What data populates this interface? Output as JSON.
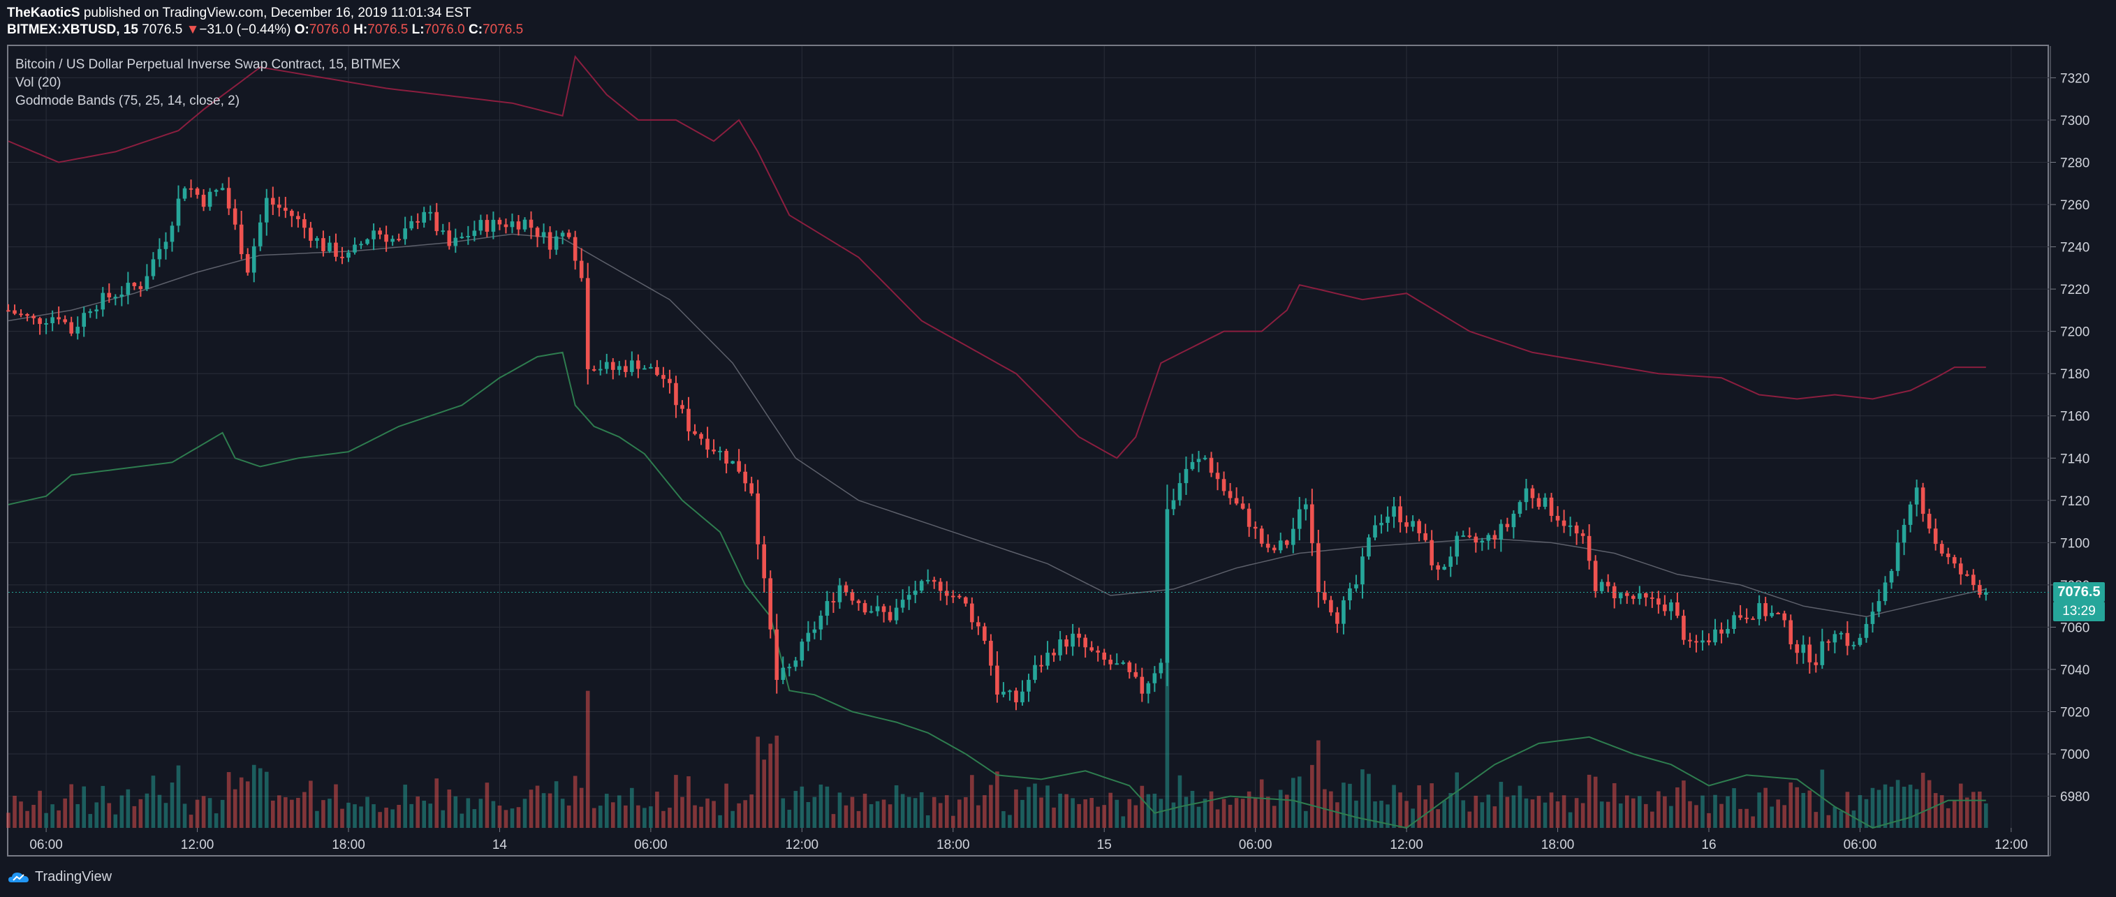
{
  "header": {
    "author": "TheKaoticS",
    "published_text": "published on TradingView.com, December 16, 2019 11:01:34 EST",
    "symbol": "BITMEX:XBTUSD, 15",
    "last": "7076.5",
    "change_arrow": "▼",
    "change": "−31.0 (−0.44%)",
    "o_label": "O:",
    "o_value": "7076.0",
    "h_label": "H:",
    "h_value": "7076.5",
    "l_label": "L:",
    "l_value": "7076.0",
    "c_label": "C:",
    "c_value": "7076.5"
  },
  "legend": {
    "title": "Bitcoin / US Dollar Perpetual Inverse Swap Contract, 15, BITMEX",
    "vol": "Vol (20)",
    "bands": "Godmode Bands (75, 25, 14, close, 2)"
  },
  "price_tag": "7076.5",
  "timer_tag": "13:29",
  "footer": {
    "brand": "TradingView"
  },
  "colors": {
    "up": "#26a69a",
    "down": "#ef5350",
    "upper_band": "#8b1e3f",
    "lower_band": "#2e7d4f",
    "mid_band": "#5d606b",
    "grid": "#2a2e39",
    "background": "#131722"
  },
  "chart_data": {
    "type": "candlestick",
    "ylim": [
      6965,
      7335
    ],
    "y_ticks": [
      7320,
      7300,
      7280,
      7260,
      7240,
      7220,
      7200,
      7180,
      7160,
      7140,
      7120,
      7100,
      7080,
      7060,
      7040,
      7020,
      7000,
      6980
    ],
    "x_range": [
      0,
      324
    ],
    "x_ticks": [
      {
        "x": 6,
        "label": "06:00"
      },
      {
        "x": 30,
        "label": "12:00"
      },
      {
        "x": 54,
        "label": "18:00"
      },
      {
        "x": 78,
        "label": "14"
      },
      {
        "x": 102,
        "label": "06:00"
      },
      {
        "x": 126,
        "label": "12:00"
      },
      {
        "x": 150,
        "label": "18:00"
      },
      {
        "x": 174,
        "label": "15"
      },
      {
        "x": 198,
        "label": "06:00"
      },
      {
        "x": 222,
        "label": "12:00"
      },
      {
        "x": 246,
        "label": "18:00"
      },
      {
        "x": 270,
        "label": "16"
      },
      {
        "x": 294,
        "label": "06:00"
      },
      {
        "x": 318,
        "label": "12:00"
      }
    ],
    "last_price": 7076.5,
    "close_anchors": [
      [
        0,
        7210
      ],
      [
        4,
        7205
      ],
      [
        8,
        7208
      ],
      [
        10,
        7200
      ],
      [
        13,
        7212
      ],
      [
        17,
        7218
      ],
      [
        21,
        7222
      ],
      [
        25,
        7245
      ],
      [
        28,
        7270
      ],
      [
        31,
        7262
      ],
      [
        34,
        7268
      ],
      [
        38,
        7230
      ],
      [
        41,
        7262
      ],
      [
        45,
        7255
      ],
      [
        50,
        7240
      ],
      [
        54,
        7235
      ],
      [
        58,
        7248
      ],
      [
        62,
        7242
      ],
      [
        66,
        7258
      ],
      [
        70,
        7240
      ],
      [
        75,
        7250
      ],
      [
        82,
        7252
      ],
      [
        86,
        7242
      ],
      [
        89,
        7248
      ],
      [
        91,
        7225
      ],
      [
        92,
        7185
      ],
      [
        96,
        7182
      ],
      [
        100,
        7185
      ],
      [
        104,
        7178
      ],
      [
        108,
        7155
      ],
      [
        112,
        7145
      ],
      [
        116,
        7135
      ],
      [
        118,
        7125
      ],
      [
        120,
        7080
      ],
      [
        122,
        7035
      ],
      [
        124,
        7040
      ],
      [
        128,
        7060
      ],
      [
        132,
        7080
      ],
      [
        136,
        7070
      ],
      [
        140,
        7065
      ],
      [
        144,
        7078
      ],
      [
        148,
        7080
      ],
      [
        152,
        7070
      ],
      [
        155,
        7055
      ],
      [
        157,
        7030
      ],
      [
        160,
        7025
      ],
      [
        163,
        7040
      ],
      [
        166,
        7050
      ],
      [
        169,
        7055
      ],
      [
        173,
        7045
      ],
      [
        177,
        7040
      ],
      [
        180,
        7030
      ],
      [
        183,
        7045
      ],
      [
        184,
        7115
      ],
      [
        187,
        7135
      ],
      [
        190,
        7140
      ],
      [
        193,
        7125
      ],
      [
        197,
        7110
      ],
      [
        200,
        7095
      ],
      [
        203,
        7100
      ],
      [
        206,
        7120
      ],
      [
        208,
        7080
      ],
      [
        211,
        7065
      ],
      [
        214,
        7080
      ],
      [
        217,
        7110
      ],
      [
        220,
        7115
      ],
      [
        224,
        7105
      ],
      [
        227,
        7085
      ],
      [
        230,
        7100
      ],
      [
        234,
        7100
      ],
      [
        238,
        7108
      ],
      [
        241,
        7125
      ],
      [
        244,
        7118
      ],
      [
        247,
        7110
      ],
      [
        250,
        7100
      ],
      [
        252,
        7080
      ],
      [
        256,
        7075
      ],
      [
        260,
        7072
      ],
      [
        264,
        7070
      ],
      [
        267,
        7050
      ],
      [
        270,
        7055
      ],
      [
        274,
        7065
      ],
      [
        278,
        7068
      ],
      [
        281,
        7065
      ],
      [
        284,
        7050
      ],
      [
        287,
        7045
      ],
      [
        290,
        7060
      ],
      [
        293,
        7050
      ],
      [
        296,
        7065
      ],
      [
        299,
        7090
      ],
      [
        301,
        7105
      ],
      [
        303,
        7125
      ],
      [
        306,
        7100
      ],
      [
        309,
        7088
      ],
      [
        312,
        7080
      ],
      [
        314,
        7076.5
      ]
    ],
    "upper_band_anchors": [
      [
        0,
        7290
      ],
      [
        8,
        7280
      ],
      [
        17,
        7285
      ],
      [
        27,
        7295
      ],
      [
        31,
        7305
      ],
      [
        40,
        7325
      ],
      [
        60,
        7315
      ],
      [
        80,
        7308
      ],
      [
        88,
        7302
      ],
      [
        90,
        7330
      ],
      [
        95,
        7312
      ],
      [
        100,
        7300
      ],
      [
        106,
        7300
      ],
      [
        112,
        7290
      ],
      [
        116,
        7300
      ],
      [
        119,
        7285
      ],
      [
        124,
        7255
      ],
      [
        135,
        7235
      ],
      [
        145,
        7205
      ],
      [
        160,
        7180
      ],
      [
        170,
        7150
      ],
      [
        176,
        7140
      ],
      [
        179,
        7150
      ],
      [
        183,
        7185
      ],
      [
        193,
        7200
      ],
      [
        199,
        7200
      ],
      [
        203,
        7210
      ],
      [
        205,
        7222
      ],
      [
        215,
        7215
      ],
      [
        222,
        7218
      ],
      [
        232,
        7200
      ],
      [
        242,
        7190
      ],
      [
        252,
        7185
      ],
      [
        262,
        7180
      ],
      [
        272,
        7178
      ],
      [
        278,
        7170
      ],
      [
        284,
        7168
      ],
      [
        290,
        7170
      ],
      [
        296,
        7168
      ],
      [
        302,
        7172
      ],
      [
        306,
        7178
      ],
      [
        309,
        7183
      ],
      [
        313,
        7183
      ]
    ],
    "lower_band_anchors": [
      [
        0,
        7118
      ],
      [
        6,
        7122
      ],
      [
        10,
        7132
      ],
      [
        18,
        7135
      ],
      [
        26,
        7138
      ],
      [
        34,
        7152
      ],
      [
        36,
        7140
      ],
      [
        40,
        7136
      ],
      [
        46,
        7140
      ],
      [
        54,
        7143
      ],
      [
        62,
        7155
      ],
      [
        72,
        7165
      ],
      [
        78,
        7178
      ],
      [
        84,
        7188
      ],
      [
        88,
        7190
      ],
      [
        90,
        7165
      ],
      [
        93,
        7155
      ],
      [
        97,
        7150
      ],
      [
        101,
        7142
      ],
      [
        107,
        7120
      ],
      [
        113,
        7105
      ],
      [
        117,
        7080
      ],
      [
        121,
        7065
      ],
      [
        124,
        7030
      ],
      [
        128,
        7028
      ],
      [
        134,
        7020
      ],
      [
        141,
        7015
      ],
      [
        146,
        7010
      ],
      [
        152,
        7000
      ],
      [
        157,
        6990
      ],
      [
        164,
        6988
      ],
      [
        171,
        6992
      ],
      [
        178,
        6985
      ],
      [
        182,
        6972
      ],
      [
        186,
        6975
      ],
      [
        194,
        6980
      ],
      [
        204,
        6978
      ],
      [
        214,
        6970
      ],
      [
        222,
        6965
      ],
      [
        228,
        6978
      ],
      [
        236,
        6995
      ],
      [
        243,
        7005
      ],
      [
        251,
        7008
      ],
      [
        258,
        7000
      ],
      [
        264,
        6995
      ],
      [
        270,
        6985
      ],
      [
        276,
        6990
      ],
      [
        284,
        6988
      ],
      [
        290,
        6975
      ],
      [
        296,
        6965
      ],
      [
        302,
        6970
      ],
      [
        308,
        6978
      ],
      [
        314,
        6978
      ]
    ],
    "mid_band_anchors": [
      [
        0,
        7205
      ],
      [
        10,
        7210
      ],
      [
        20,
        7218
      ],
      [
        30,
        7228
      ],
      [
        40,
        7236
      ],
      [
        55,
        7238
      ],
      [
        70,
        7242
      ],
      [
        80,
        7246
      ],
      [
        88,
        7244
      ],
      [
        95,
        7232
      ],
      [
        105,
        7215
      ],
      [
        115,
        7185
      ],
      [
        125,
        7140
      ],
      [
        135,
        7120
      ],
      [
        145,
        7110
      ],
      [
        155,
        7100
      ],
      [
        165,
        7090
      ],
      [
        175,
        7075
      ],
      [
        185,
        7078
      ],
      [
        195,
        7088
      ],
      [
        205,
        7095
      ],
      [
        215,
        7098
      ],
      [
        225,
        7100
      ],
      [
        235,
        7102
      ],
      [
        245,
        7100
      ],
      [
        255,
        7095
      ],
      [
        265,
        7085
      ],
      [
        275,
        7080
      ],
      [
        285,
        7070
      ],
      [
        295,
        7065
      ],
      [
        305,
        7072
      ],
      [
        314,
        7078
      ]
    ],
    "volume_max": 1.0
  }
}
